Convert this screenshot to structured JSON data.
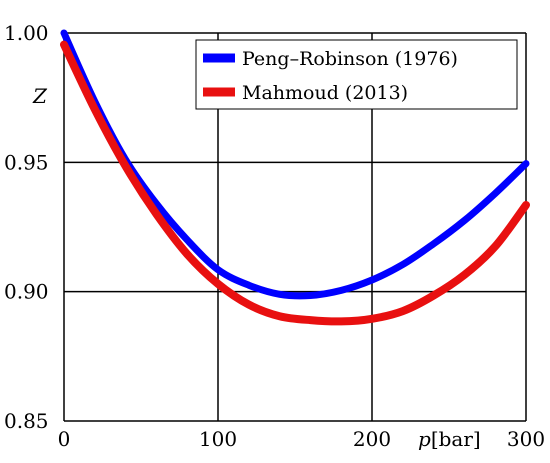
{
  "chart_data": {
    "type": "line",
    "title": "",
    "xlabel_var": "p",
    "xlabel_unit": "[bar]",
    "ylabel": "Z",
    "xlim": [
      0,
      300
    ],
    "ylim": [
      0.85,
      1.0
    ],
    "xticks": [
      0,
      100,
      200,
      300
    ],
    "xtick_labels": [
      "0",
      "100",
      "200",
      "300"
    ],
    "yticks": [
      0.85,
      0.9,
      0.95,
      1.0
    ],
    "ytick_labels": [
      "0.85",
      "0.90",
      "0.95",
      "1.00"
    ],
    "grid": true,
    "legend_position": "top-right",
    "series": [
      {
        "name": "Peng–Robinson (1976)",
        "color": "#0000ff",
        "x": [
          0,
          20,
          40,
          60,
          80,
          100,
          120,
          140,
          160,
          180,
          200,
          220,
          240,
          260,
          280,
          300
        ],
        "y": [
          1.0,
          0.9735,
          0.951,
          0.934,
          0.92,
          0.9085,
          0.9025,
          0.899,
          0.8985,
          0.9005,
          0.9045,
          0.9105,
          0.9185,
          0.9275,
          0.938,
          0.9495
        ]
      },
      {
        "name": "Mahmoud (2013)",
        "color": "#e81010",
        "x": [
          0,
          20,
          40,
          60,
          80,
          100,
          120,
          140,
          160,
          180,
          200,
          220,
          240,
          260,
          280,
          300
        ],
        "y": [
          0.9955,
          0.9705,
          0.9485,
          0.93,
          0.9145,
          0.903,
          0.895,
          0.8905,
          0.889,
          0.8885,
          0.8895,
          0.8925,
          0.8985,
          0.9065,
          0.9175,
          0.9335
        ]
      }
    ]
  }
}
